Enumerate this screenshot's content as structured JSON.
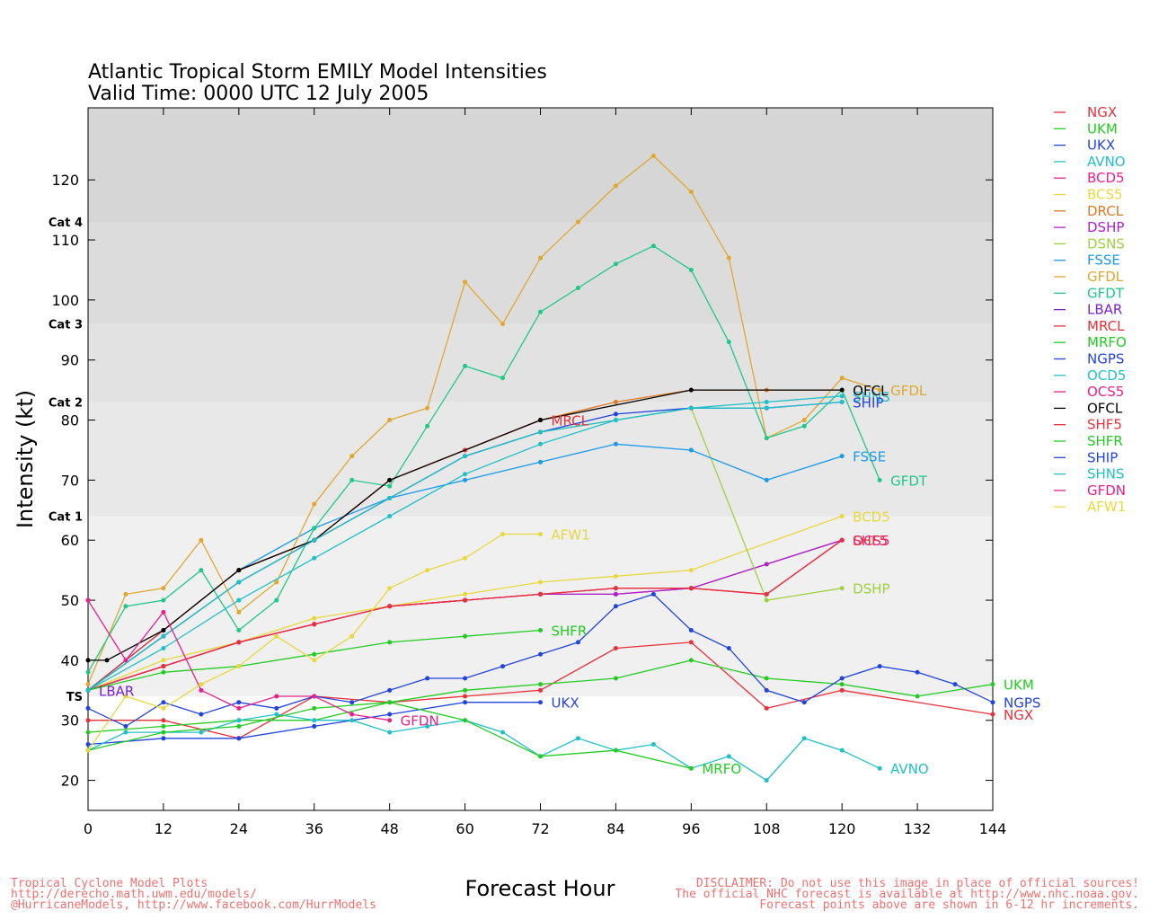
{
  "chart_data": {
    "type": "line",
    "title": "Atlantic Tropical Storm EMILY Model Intensities",
    "subtitle": "Valid Time: 0000 UTC 12 July 2005",
    "xlabel": "Forecast Hour",
    "ylabel": "Intensity (kt)",
    "xlim": [
      0,
      144
    ],
    "ylim": [
      15,
      132
    ],
    "xticks": [
      0,
      12,
      24,
      36,
      48,
      60,
      72,
      84,
      96,
      108,
      120,
      132,
      144
    ],
    "yticks": [
      20,
      30,
      40,
      50,
      60,
      70,
      80,
      90,
      100,
      110,
      120
    ],
    "grid": false,
    "legend_position": "right",
    "bands": [
      {
        "label": "TS",
        "from": 34,
        "to": 64,
        "color": "#f0f0f0"
      },
      {
        "label": "Cat 1",
        "from": 64,
        "to": 83,
        "color": "#e8e8e8"
      },
      {
        "label": "Cat 2",
        "from": 83,
        "to": 96,
        "color": "#e2e2e2"
      },
      {
        "label": "Cat 3",
        "from": 96,
        "to": 113,
        "color": "#dcdcdc"
      },
      {
        "label": "Cat 4",
        "from": 113,
        "to": 132,
        "color": "#d6d6d6"
      }
    ],
    "series": [
      {
        "name": "NGX",
        "color": "#e8303a",
        "x": [
          0,
          12,
          24,
          36,
          48,
          60,
          72,
          84,
          96,
          108,
          120,
          144
        ],
        "y": [
          30,
          30,
          27,
          34,
          33,
          34,
          35,
          42,
          43,
          32,
          35,
          31
        ],
        "end_label": "NGX"
      },
      {
        "name": "UKM",
        "color": "#22cc22",
        "x": [
          0,
          12,
          24,
          36,
          48,
          60,
          72,
          84,
          96,
          108,
          120,
          132,
          144
        ],
        "y": [
          28,
          29,
          30,
          30,
          33,
          35,
          36,
          37,
          40,
          37,
          36,
          34,
          36
        ],
        "end_label": "UKM"
      },
      {
        "name": "UKX",
        "color": "#2244dd",
        "x": [
          0,
          12,
          24,
          36,
          48,
          60,
          72
        ],
        "y": [
          26,
          27,
          27,
          29,
          31,
          33,
          33
        ],
        "end_label": "UKX"
      },
      {
        "name": "AVNO",
        "color": "#20c0c8",
        "x": [
          0,
          6,
          12,
          18,
          24,
          30,
          36,
          42,
          48,
          54,
          60,
          66,
          72,
          78,
          84,
          90,
          96,
          102,
          108,
          114,
          120,
          126
        ],
        "y": [
          25,
          28,
          28,
          28,
          30,
          31,
          30,
          30,
          28,
          29,
          30,
          28,
          24,
          27,
          25,
          26,
          22,
          24,
          20,
          27,
          25,
          22
        ],
        "end_label": "AVNO"
      },
      {
        "name": "BCD5",
        "color": "#e8208a",
        "x": [
          0,
          12,
          24,
          36,
          48,
          60,
          72,
          84,
          96,
          120
        ],
        "y": [
          35,
          39,
          43,
          46,
          49,
          50,
          51,
          51,
          52,
          60
        ],
        "end_label": ""
      },
      {
        "name": "BCS5",
        "color": "#e8d840",
        "x": [
          0,
          12,
          24,
          36,
          48,
          60,
          72,
          84,
          96,
          120
        ],
        "y": [
          35,
          40,
          43,
          47,
          49,
          51,
          53,
          54,
          55,
          64
        ],
        "end_label": "BCD5"
      },
      {
        "name": "DRCL",
        "color": "#e07a20",
        "x": [
          0,
          12,
          24,
          36,
          48,
          60,
          72,
          84,
          96,
          108,
          120
        ],
        "y": [
          35,
          45,
          55,
          60,
          70,
          75,
          80,
          83,
          85,
          85,
          85
        ],
        "end_label": ""
      },
      {
        "name": "DSHP",
        "color": "#aa22cc",
        "x": [
          0,
          12,
          24,
          36,
          48,
          60,
          72,
          84,
          96,
          108,
          120
        ],
        "y": [
          35,
          39,
          43,
          46,
          49,
          50,
          51,
          51,
          52,
          56,
          60
        ],
        "end_label": ""
      },
      {
        "name": "DSNS",
        "color": "#a0d040",
        "x": [
          0,
          12,
          24,
          36,
          48,
          60,
          72,
          84,
          96,
          108,
          120
        ],
        "y": [
          35,
          44,
          53,
          60,
          67,
          74,
          78,
          80,
          82,
          50,
          52
        ],
        "end_label": "DSHP"
      },
      {
        "name": "FSSE",
        "color": "#1a9ae8",
        "x": [
          0,
          12,
          24,
          36,
          48,
          60,
          72,
          84,
          96,
          108,
          120
        ],
        "y": [
          35,
          45,
          55,
          62,
          67,
          70,
          73,
          76,
          75,
          70,
          74
        ],
        "end_label": "FSSE"
      },
      {
        "name": "GFDL",
        "color": "#e0a830",
        "x": [
          0,
          6,
          12,
          18,
          24,
          30,
          36,
          42,
          48,
          54,
          60,
          66,
          72,
          78,
          84,
          90,
          96,
          102,
          108,
          114,
          120,
          126
        ],
        "y": [
          36,
          51,
          52,
          60,
          48,
          53,
          66,
          74,
          80,
          82,
          103,
          96,
          107,
          113,
          119,
          124,
          118,
          107,
          77,
          80,
          87,
          85
        ],
        "end_label": "GFDL"
      },
      {
        "name": "GFDT",
        "color": "#20c888",
        "x": [
          0,
          6,
          12,
          18,
          24,
          30,
          36,
          42,
          48,
          54,
          60,
          66,
          72,
          78,
          84,
          90,
          96,
          102,
          108,
          114,
          120,
          126
        ],
        "y": [
          38,
          49,
          50,
          55,
          45,
          50,
          62,
          70,
          69,
          79,
          89,
          87,
          98,
          102,
          106,
          109,
          105,
          93,
          77,
          79,
          85,
          70
        ],
        "end_label": "GFDT"
      },
      {
        "name": "LBAR",
        "color": "#7a22cc",
        "x": [
          0
        ],
        "y": [
          35
        ],
        "end_label": "LBAR"
      },
      {
        "name": "MRCL",
        "color": "#e8303a",
        "x": [
          0,
          12,
          24,
          36,
          48,
          60,
          72
        ],
        "y": [
          35,
          45,
          55,
          60,
          70,
          75,
          80
        ],
        "end_label": "MRCL"
      },
      {
        "name": "MRFO",
        "color": "#22cc22",
        "x": [
          0,
          12,
          24,
          36,
          48,
          60,
          72,
          84,
          96
        ],
        "y": [
          25,
          28,
          29,
          32,
          33,
          30,
          24,
          25,
          22
        ],
        "end_label": "MRFO"
      },
      {
        "name": "NGPS",
        "color": "#2244dd",
        "x": [
          0,
          6,
          12,
          18,
          24,
          30,
          36,
          42,
          48,
          54,
          60,
          66,
          72,
          78,
          84,
          90,
          96,
          102,
          108,
          114,
          120,
          126,
          132,
          138,
          144
        ],
        "y": [
          32,
          29,
          33,
          31,
          33,
          32,
          34,
          33,
          35,
          37,
          37,
          39,
          41,
          43,
          49,
          51,
          45,
          42,
          35,
          33,
          37,
          39,
          38,
          36,
          33
        ],
        "end_label": "NGPS"
      },
      {
        "name": "OCD5",
        "color": "#20c0c8",
        "x": [
          0,
          12,
          24,
          36,
          48,
          60,
          72,
          84,
          96,
          108,
          120
        ],
        "y": [
          35,
          42,
          50,
          57,
          64,
          71,
          76,
          80,
          82,
          83,
          84
        ],
        "end_label": "SHNS"
      },
      {
        "name": "OCS5",
        "color": "#e8208a",
        "x": [
          0,
          12,
          24,
          36,
          48,
          60,
          72,
          84,
          96,
          108,
          120
        ],
        "y": [
          35,
          39,
          43,
          46,
          49,
          50,
          51,
          52,
          52,
          51,
          60
        ],
        "end_label": "OCS5"
      },
      {
        "name": "OFCL",
        "color": "#000000",
        "x": [
          0,
          3,
          12,
          24,
          36,
          48,
          72,
          96,
          120
        ],
        "y": [
          40,
          40,
          45,
          55,
          60,
          70,
          80,
          85,
          85
        ],
        "end_label": "OFCL"
      },
      {
        "name": "SHF5",
        "color": "#e8303a",
        "x": [
          0,
          12,
          24,
          36,
          48,
          60,
          72,
          84,
          96,
          108,
          120
        ],
        "y": [
          35,
          39,
          43,
          46,
          49,
          50,
          51,
          52,
          52,
          51,
          60
        ],
        "end_label": "SHF5"
      },
      {
        "name": "SHFR",
        "color": "#22cc22",
        "x": [
          0,
          12,
          24,
          36,
          48,
          60,
          72
        ],
        "y": [
          35,
          38,
          39,
          41,
          43,
          44,
          45
        ],
        "end_label": "SHFR"
      },
      {
        "name": "SHIP",
        "color": "#2244dd",
        "x": [
          0,
          12,
          24,
          36,
          48,
          60,
          72,
          84,
          96,
          108,
          120
        ],
        "y": [
          35,
          44,
          53,
          60,
          67,
          74,
          78,
          81,
          82,
          82,
          83
        ],
        "end_label": "SHIP"
      },
      {
        "name": "SHNS",
        "color": "#20c0c8",
        "x": [
          0,
          12,
          24,
          36,
          48,
          60,
          72,
          84,
          96,
          108,
          120
        ],
        "y": [
          35,
          44,
          53,
          60,
          67,
          74,
          78,
          80,
          82,
          82,
          83
        ],
        "end_label": ""
      },
      {
        "name": "GFDN",
        "color": "#e8208a",
        "x": [
          0,
          6,
          12,
          18,
          24,
          30,
          36,
          42,
          48
        ],
        "y": [
          50,
          40,
          48,
          35,
          32,
          34,
          34,
          31,
          30
        ],
        "end_label": "GFDN"
      },
      {
        "name": "AFW1",
        "color": "#e8d840",
        "x": [
          0,
          6,
          12,
          18,
          24,
          30,
          36,
          42,
          48,
          54,
          60,
          66,
          72
        ],
        "y": [
          25,
          34,
          32,
          36,
          39,
          44,
          40,
          44,
          52,
          55,
          57,
          61,
          61
        ],
        "end_label": "AFW1"
      }
    ]
  },
  "footer": {
    "left": [
      "Tropical Cyclone Model Plots",
      "http://derecho.math.uwm.edu/models/",
      "@HurricaneModels, http://www.facebook.com/HurrModels"
    ],
    "right": [
      "DISCLAIMER: Do not use this image in place of official sources!",
      "The official NHC forecast is available at http://www.nhc.noaa.gov.",
      "Forecast points above are shown in 6-12 hr increments."
    ]
  }
}
